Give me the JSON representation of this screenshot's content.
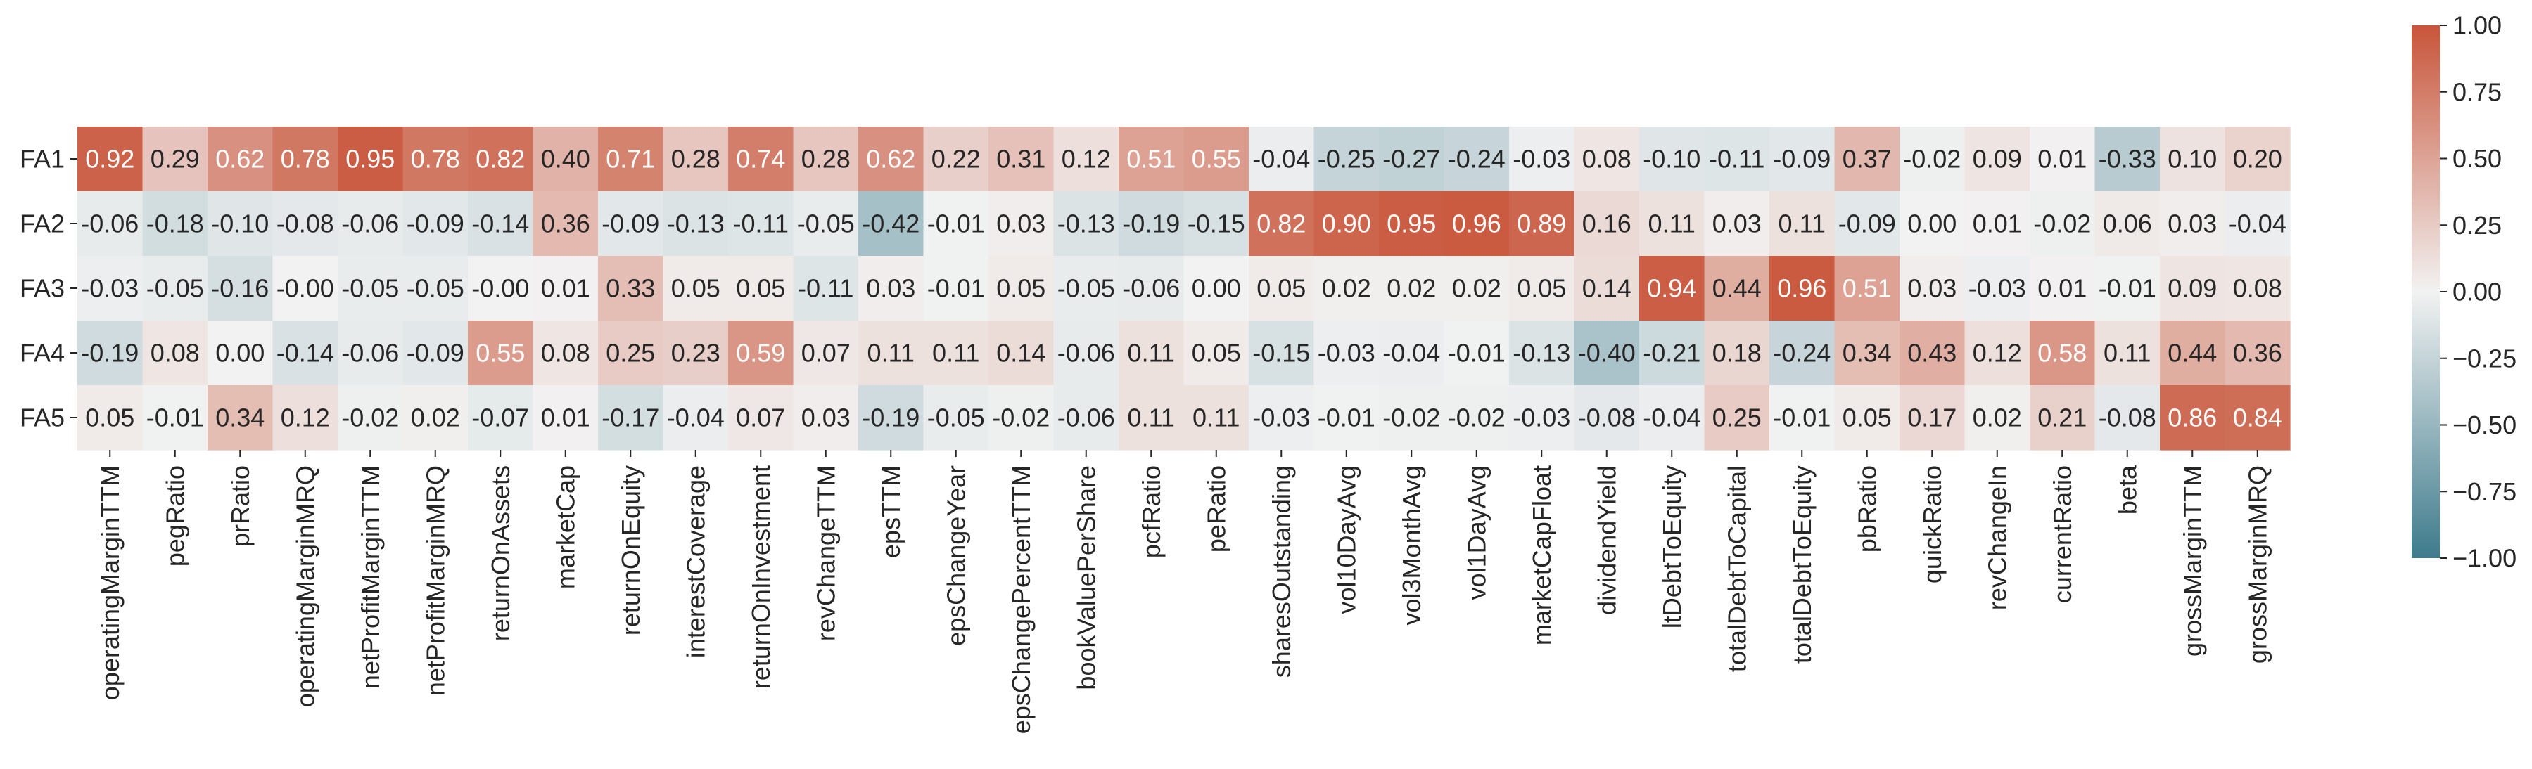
{
  "chart_data": {
    "type": "heatmap",
    "title": "",
    "xlabel": "",
    "ylabel": "",
    "rows": [
      "FA1",
      "FA2",
      "FA3",
      "FA4",
      "FA5"
    ],
    "columns": [
      "operatingMarginTTM",
      "pegRatio",
      "prRatio",
      "operatingMarginMRQ",
      "netProfitMarginTTM",
      "netProfitMarginMRQ",
      "returnOnAssets",
      "marketCap",
      "returnOnEquity",
      "interestCoverage",
      "returnOnInvestment",
      "revChangeTTM",
      "epsTTM",
      "epsChangeYear",
      "epsChangePercentTTM",
      "bookValuePerShare",
      "pcfRatio",
      "peRatio",
      "sharesOutstanding",
      "vol10DayAvg",
      "vol3MonthAvg",
      "vol1DayAvg",
      "marketCapFloat",
      "dividendYield",
      "ltDebtToEquity",
      "totalDebtToCapital",
      "totalDebtToEquity",
      "pbRatio",
      "quickRatio",
      "revChangeIn",
      "currentRatio",
      "beta",
      "grossMarginTTM",
      "grossMarginMRQ"
    ],
    "values": [
      [
        0.92,
        0.29,
        0.62,
        0.78,
        0.95,
        0.78,
        0.82,
        0.4,
        0.71,
        0.28,
        0.74,
        0.28,
        0.62,
        0.22,
        0.31,
        0.12,
        0.51,
        0.55,
        -0.04,
        -0.25,
        -0.27,
        -0.24,
        -0.03,
        0.08,
        -0.1,
        -0.11,
        -0.09,
        0.37,
        -0.02,
        0.09,
        0.01,
        -0.33,
        0.1,
        0.2
      ],
      [
        -0.06,
        -0.18,
        -0.1,
        -0.08,
        -0.06,
        -0.09,
        -0.14,
        0.36,
        -0.09,
        -0.13,
        -0.11,
        -0.05,
        -0.42,
        -0.01,
        0.03,
        -0.13,
        -0.19,
        -0.15,
        0.82,
        0.9,
        0.95,
        0.96,
        0.89,
        0.16,
        0.11,
        0.03,
        0.11,
        -0.09,
        0.0,
        0.01,
        -0.02,
        0.06,
        0.03,
        -0.04
      ],
      [
        -0.03,
        -0.05,
        -0.16,
        -0.0,
        -0.05,
        -0.05,
        -0.0,
        0.01,
        0.33,
        0.05,
        0.05,
        -0.11,
        0.03,
        -0.01,
        0.05,
        -0.05,
        -0.06,
        0.0,
        0.05,
        0.02,
        0.02,
        0.02,
        0.05,
        0.14,
        0.94,
        0.44,
        0.96,
        0.51,
        0.03,
        -0.03,
        0.01,
        -0.01,
        0.09,
        0.08
      ],
      [
        -0.19,
        0.08,
        0.0,
        -0.14,
        -0.06,
        -0.09,
        0.55,
        0.08,
        0.25,
        0.23,
        0.59,
        0.07,
        0.11,
        0.11,
        0.14,
        -0.06,
        0.11,
        0.05,
        -0.15,
        -0.03,
        -0.04,
        -0.01,
        -0.13,
        -0.4,
        -0.21,
        0.18,
        -0.24,
        0.34,
        0.43,
        0.12,
        0.58,
        0.11,
        0.44,
        0.36
      ],
      [
        0.05,
        -0.01,
        0.34,
        0.12,
        -0.02,
        0.02,
        -0.07,
        0.01,
        -0.17,
        -0.04,
        0.07,
        0.03,
        -0.19,
        -0.05,
        -0.02,
        -0.06,
        0.11,
        0.11,
        -0.03,
        -0.01,
        -0.02,
        -0.02,
        -0.03,
        -0.08,
        -0.04,
        0.25,
        -0.01,
        0.05,
        0.17,
        0.02,
        0.21,
        -0.08,
        0.86,
        0.84
      ]
    ],
    "vmin": -1.0,
    "vmax": 1.0,
    "colormap": {
      "low": "#3e7b8c",
      "mid": "#f2f2f2",
      "high": "#c8553a"
    },
    "colorbar_ticks": [
      1.0,
      0.75,
      0.5,
      0.25,
      0.0,
      -0.25,
      -0.5,
      -0.75,
      -1.0
    ],
    "colorbar_tick_labels": [
      "1.00",
      "0.75",
      "0.50",
      "0.25",
      "0.00",
      "−0.25",
      "−0.50",
      "−0.75",
      "−1.00"
    ]
  }
}
